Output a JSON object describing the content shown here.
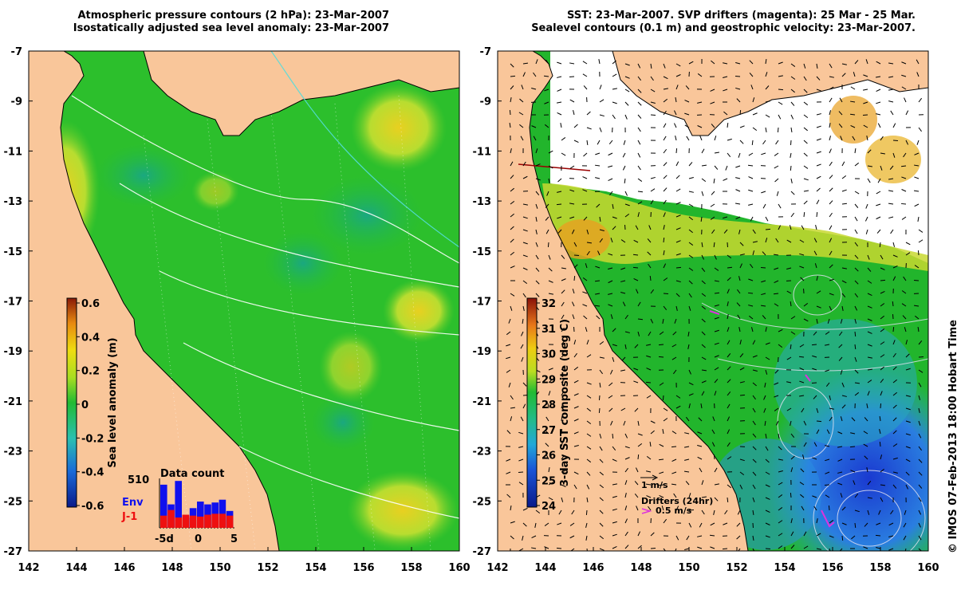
{
  "left_panel": {
    "title_line1": "Atmospheric pressure contours (2 hPa): 23-Mar-2007",
    "title_line2": "Isostatically adjusted sea level anomaly: 23-Mar-2007",
    "y_ticks": [
      "-7",
      "-9",
      "-11",
      "-13",
      "-15",
      "-17",
      "-19",
      "-21",
      "-23",
      "-25",
      "-27"
    ],
    "x_ticks": [
      "142",
      "144",
      "146",
      "148",
      "150",
      "152",
      "154",
      "156",
      "158",
      "160"
    ],
    "colorbar": {
      "label": "Sea level anomaly (m)",
      "ticks": [
        "0.6",
        "0.4",
        "0.2",
        "0",
        "-0.2",
        "-0.4",
        "-0.6"
      ]
    },
    "data_count": {
      "title": "Data count",
      "max_label": "510",
      "env_label": "Env",
      "j1_label": "J-1",
      "x_labels": [
        "-5d",
        "0",
        "5"
      ],
      "env_color": "#1010ee",
      "j1_color": "#ee1010",
      "env_counts": [
        460,
        250,
        500,
        110,
        210,
        280,
        250,
        270,
        300,
        180
      ],
      "j1_counts": [
        130,
        190,
        110,
        140,
        130,
        120,
        140,
        150,
        150,
        130
      ]
    }
  },
  "right_panel": {
    "title_line1": "SST: 23-Mar-2007. SVP drifters (magenta): 25 Mar - 25 Mar.",
    "title_line2": "Sealevel contours (0.1 m) and geostrophic velocity: 23-Mar-2007.",
    "y_ticks": [
      "-7",
      "-9",
      "-11",
      "-13",
      "-15",
      "-17",
      "-19",
      "-21",
      "-23",
      "-25",
      "-27"
    ],
    "x_ticks": [
      "142",
      "144",
      "146",
      "148",
      "150",
      "152",
      "154",
      "156",
      "158",
      "160"
    ],
    "colorbar": {
      "label": "3-day SST composite (deg C)",
      "ticks": [
        "32",
        "31",
        "30",
        "29",
        "28",
        "27",
        "26",
        "25",
        "24"
      ]
    },
    "scale_label": "1 m/s",
    "drifters_label": "Drifters (24hr)",
    "drifters_speed": "0.5 m/s"
  },
  "credit": "© IMOS 07-Feb-2013 18:00 Hobart Time",
  "colors": {
    "land": "#f9c69a",
    "ocean_green": "#22bb22",
    "drifter_magenta": "#dd33dd"
  }
}
